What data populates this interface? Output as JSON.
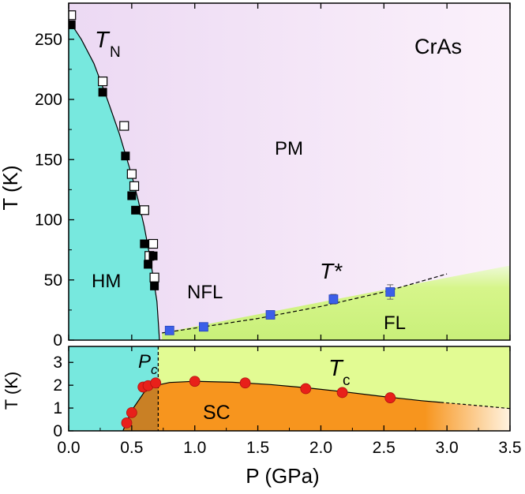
{
  "colors": {
    "hm": "#77e8de",
    "pm": "#f6e8f9",
    "fl": "#d6f58a",
    "sc": "#f7951e",
    "sc_overlap": "#c98025",
    "lower_bg": "#e2fb93",
    "tn_open": "#ffffff",
    "tn_filled": "#000000",
    "tstar": "#3b5fe8",
    "tc": "#e8201a"
  },
  "chart_data": [
    {
      "type": "scatter",
      "panel": "upper",
      "title": "CrAs",
      "xlabel": "P (GPa)",
      "ylabel": "T (K)",
      "xlim": [
        0.0,
        3.5
      ],
      "ylim": [
        0,
        280
      ],
      "yticks": [
        0,
        50,
        100,
        150,
        200,
        250
      ],
      "region_labels": {
        "hm": "HM",
        "pm": "PM",
        "nfl": "NFL",
        "fl": "FL"
      },
      "curve_labels": {
        "tn_main": "T",
        "tn_sub": "N",
        "tstar": "T*"
      },
      "tn_boundary": {
        "x": [
          0.0,
          0.1,
          0.2,
          0.3,
          0.4,
          0.5,
          0.55,
          0.6,
          0.65,
          0.7,
          0.72
        ],
        "y": [
          266,
          250,
          230,
          202,
          172,
          137,
          117,
          94,
          66,
          32,
          0
        ]
      },
      "series": [
        {
          "name": "T_N open squares",
          "marker": "open-square",
          "x": [
            0.02,
            0.27,
            0.44,
            0.5,
            0.52,
            0.6,
            0.64,
            0.67,
            0.68
          ],
          "y": [
            270,
            215,
            178,
            138,
            128,
            108,
            70,
            80,
            52
          ]
        },
        {
          "name": "T_N filled squares",
          "marker": "filled-square",
          "x": [
            0.02,
            0.27,
            0.45,
            0.5,
            0.53,
            0.6,
            0.63,
            0.67,
            0.68
          ],
          "y": [
            262,
            206,
            153,
            120,
            108,
            80,
            63,
            70,
            45
          ]
        },
        {
          "name": "T*",
          "marker": "blue-square",
          "x": [
            0.8,
            1.07,
            1.6,
            2.1,
            2.55
          ],
          "y": [
            8,
            11,
            21,
            34,
            40
          ],
          "err": [
            0,
            0,
            0,
            4,
            6
          ],
          "fit_x": [
            0.74,
            1.0,
            1.5,
            2.0,
            2.5,
            3.0
          ],
          "fit_y": [
            6,
            10,
            18,
            28,
            40,
            55
          ]
        }
      ],
      "fl_boundary": {
        "x": [
          0.74,
          3.5
        ],
        "y": [
          6,
          62
        ]
      }
    },
    {
      "type": "scatter",
      "panel": "lower",
      "xlabel": "P (GPa)",
      "ylabel": "T (K)",
      "xlim": [
        0.0,
        3.5
      ],
      "ylim": [
        0,
        3.7
      ],
      "xticks": [
        "0.0",
        "0.5",
        "1.0",
        "1.5",
        "2.0",
        "2.5",
        "3.0",
        "3.5"
      ],
      "yticks": [
        0,
        1,
        2,
        3
      ],
      "pc": 0.71,
      "labels": {
        "pc_main": "P",
        "pc_sub": "c",
        "tc_main": "T",
        "tc_sub": "c",
        "sc": "SC"
      },
      "series": [
        {
          "name": "T_c",
          "marker": "red-circle",
          "x": [
            0.46,
            0.5,
            0.59,
            0.63,
            0.69,
            1.0,
            1.4,
            1.88,
            2.17,
            2.55
          ],
          "y": [
            0.35,
            0.8,
            1.92,
            1.98,
            2.1,
            2.17,
            2.1,
            1.85,
            1.68,
            1.45
          ]
        }
      ],
      "tc_curve": {
        "x": [
          0.43,
          0.5,
          0.6,
          0.7,
          0.8,
          1.0,
          1.3,
          1.6,
          1.9,
          2.2,
          2.5,
          2.8,
          2.95
        ],
        "y": [
          0.0,
          0.9,
          1.7,
          2.0,
          2.12,
          2.17,
          2.13,
          2.03,
          1.88,
          1.7,
          1.5,
          1.32,
          1.25
        ]
      },
      "tc_extrapolation": {
        "x": [
          2.95,
          3.2,
          3.5
        ],
        "y": [
          1.25,
          1.13,
          0.98
        ]
      }
    }
  ]
}
